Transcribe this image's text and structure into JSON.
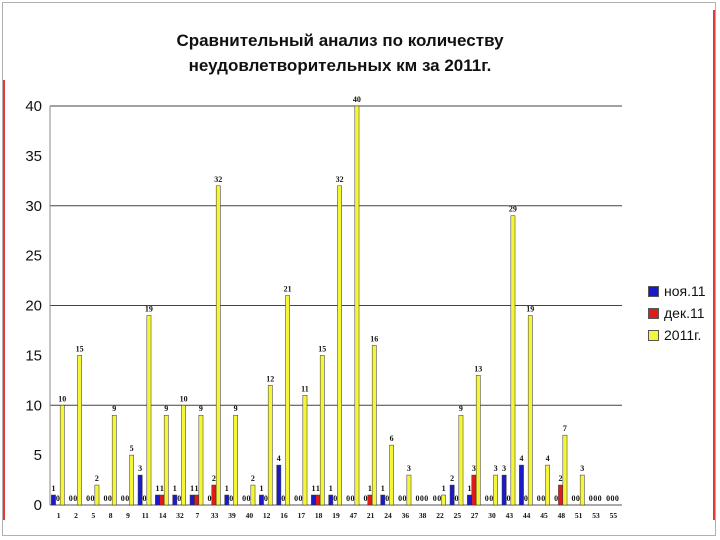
{
  "title_line1": "Сравнительный анализ по количеству",
  "title_line2": "неудовлетворительных км за 2011г.",
  "chart_data": {
    "type": "bar",
    "title": "Сравнительный анализ по количеству неудовлетворительных км за 2011г.",
    "xlabel": "",
    "ylabel": "",
    "ylim": [
      0,
      40
    ],
    "yticks": [
      0,
      5,
      10,
      15,
      20,
      25,
      30,
      35,
      40
    ],
    "grid": "horizontal at 10, 20, 30, 40",
    "legend_position": "right",
    "categories": [
      "1",
      "2",
      "5",
      "8",
      "9",
      "11",
      "14",
      "32",
      "7",
      "33",
      "39",
      "40",
      "12",
      "16",
      "17",
      "18",
      "19",
      "47",
      "21",
      "24",
      "36",
      "38",
      "22",
      "25",
      "27",
      "30",
      "43",
      "44",
      "45",
      "48",
      "51",
      "53",
      "55"
    ],
    "series": [
      {
        "name": "ноя.11",
        "color": "#1a1acc",
        "values": [
          1,
          0,
          0,
          0,
          0,
          3,
          1,
          1,
          1,
          0,
          1,
          0,
          1,
          4,
          0,
          1,
          1,
          0,
          0,
          1,
          0,
          0,
          0,
          2,
          1,
          0,
          3,
          4,
          0,
          0,
          0,
          0,
          0
        ]
      },
      {
        "name": "дек.11",
        "color": "#e01b1b",
        "values": [
          0,
          0,
          0,
          0,
          0,
          0,
          1,
          0,
          1,
          2,
          0,
          0,
          0,
          0,
          0,
          1,
          0,
          0,
          1,
          0,
          0,
          0,
          0,
          0,
          3,
          0,
          0,
          0,
          0,
          2,
          0,
          0,
          0
        ]
      },
      {
        "name": "2011г.",
        "color": "#f5f53a",
        "values": [
          10,
          15,
          2,
          9,
          5,
          19,
          9,
          10,
          9,
          32,
          9,
          2,
          12,
          21,
          11,
          15,
          32,
          40,
          16,
          6,
          3,
          0,
          1,
          9,
          13,
          3,
          29,
          19,
          4,
          7,
          3,
          0,
          0
        ]
      }
    ],
    "value_labels": [
      [
        "1",
        "0",
        "0",
        "0",
        "0",
        "3",
        "1",
        "1",
        "1",
        "0",
        "1",
        "0",
        "1",
        "4",
        "0",
        "1",
        "1",
        "0",
        "0",
        "1",
        "0",
        "0",
        "0",
        "2",
        "1",
        "0",
        "3",
        "4",
        "0",
        "0",
        "0",
        "0",
        "0"
      ],
      [
        "0",
        "0",
        "0",
        "0",
        "0",
        "0",
        "1",
        "0",
        "1",
        "2",
        "0",
        "0",
        "0",
        "0",
        "0",
        "1",
        "0",
        "0",
        "1",
        "0",
        "0",
        "0",
        "0",
        "0",
        "3",
        "0",
        "0",
        "0",
        "0",
        "2",
        "0",
        "0",
        "0"
      ],
      [
        "10",
        "15",
        "2",
        "9",
        "5",
        "19",
        "9",
        "10",
        "9",
        "32",
        "9",
        "2",
        "12",
        "21",
        "11",
        "15",
        "32",
        "40",
        "16",
        "6",
        "3",
        "0",
        "1",
        "9",
        "13",
        "3",
        "29",
        "19",
        "4",
        "7",
        "3",
        "0",
        "0"
      ]
    ]
  }
}
